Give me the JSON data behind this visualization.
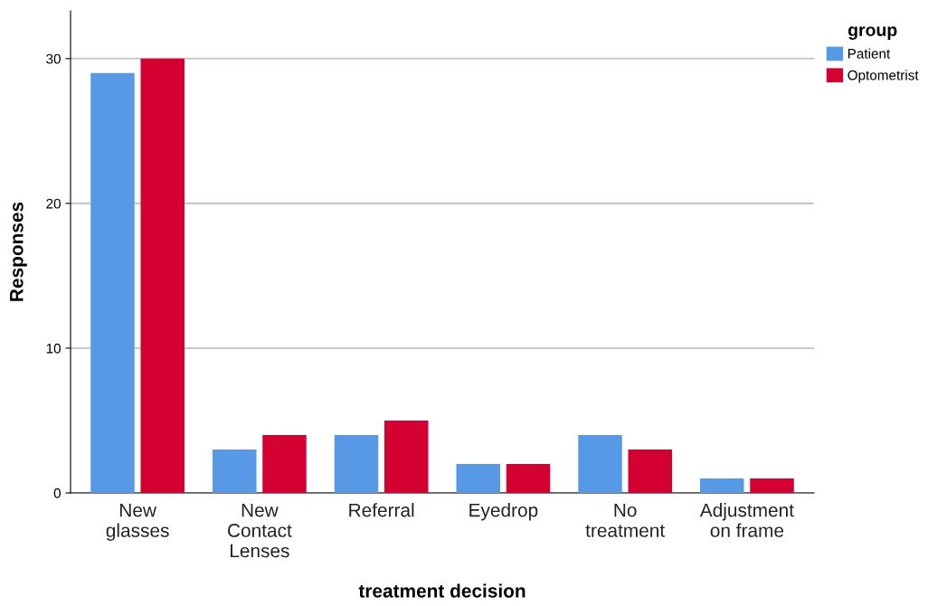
{
  "chart_data": {
    "type": "bar",
    "xlabel": "treatment decision",
    "ylabel": "Responses",
    "legend_title": "group",
    "categories": [
      "New\nglasses",
      "New\nContact\nLenses",
      "Referral",
      "Eyedrop",
      "No\ntreatment",
      "Adjustment\non frame"
    ],
    "series": [
      {
        "name": "Patient",
        "color": "#5899e5",
        "values": [
          29,
          3,
          4,
          2,
          4,
          1
        ]
      },
      {
        "name": "Optometrist",
        "color": "#d50032",
        "values": [
          30,
          4,
          5,
          2,
          3,
          1
        ]
      }
    ],
    "ylim": [
      0,
      33.3
    ],
    "yticks": [
      0,
      10,
      20,
      30
    ],
    "grid": "y",
    "legend": "top right"
  }
}
